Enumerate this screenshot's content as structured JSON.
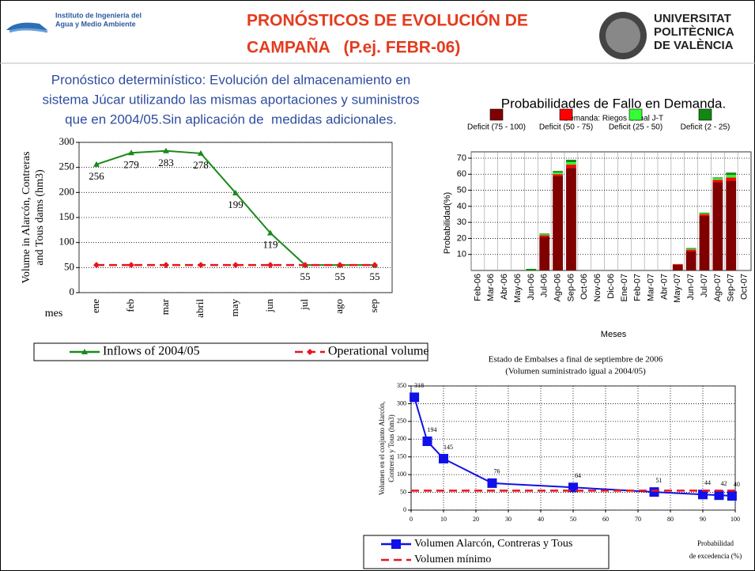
{
  "header": {
    "institute": [
      "Instituto de Ingeniería del",
      "Agua y Medio Ambiente"
    ],
    "title": [
      "PRONÓSTICOS DE EVOLUCIÓN DE",
      "CAMPAÑA   (P.ej. FEBR-06)"
    ],
    "university": [
      "UNIVERSITAT",
      "POLITÈCNICA",
      "DE VALÈNCIA"
    ],
    "description": [
      "Pronóstico determinístico: Evolución del almacenamiento en",
      "sistema Júcar utilizando las mismas aportaciones y suministros",
      "que en 2004/05.Sin aplicación de  medidas adicionales."
    ]
  },
  "chart_data": [
    {
      "type": "line",
      "ylabel": [
        "Volume in Alarcón, Contreras",
        "and Tous dams (hm3)"
      ],
      "xlabel": "mes",
      "categories": [
        "ene",
        "feb",
        "mar",
        "abril",
        "may",
        "jun",
        "jul",
        "ago",
        "sep"
      ],
      "series": [
        {
          "name": "Inflows of  2004/05",
          "color": "#1a8a1a",
          "marker": "triangle",
          "linestyle": "solid",
          "data_labels": true,
          "values": [
            256,
            279,
            283,
            278,
            199,
            119,
            55,
            55,
            55
          ]
        },
        {
          "name": "Operational volume",
          "color": "#e8141e",
          "marker": "diamond",
          "linestyle": "dashed",
          "data_labels": false,
          "values": [
            55,
            55,
            55,
            55,
            55,
            55,
            55,
            55,
            55
          ]
        }
      ],
      "ylim": [
        0,
        300
      ],
      "yticks": [
        0,
        50,
        100,
        150,
        200,
        250,
        300
      ],
      "grid": true
    },
    {
      "type": "bar",
      "stacked": true,
      "title": "Probabilidades de Fallo en Demanda.",
      "subtitle": "Demanda: Riegos Canal J-T",
      "ylabel": "Probabilidad(%)",
      "xlabel": "Meses",
      "categories": [
        "Feb-06",
        "Mar-06",
        "Abr-06",
        "May-06",
        "Jun-06",
        "Jul-06",
        "Ago-06",
        "Sep-06",
        "Oct-06",
        "Nov-06",
        "Dic-06",
        "Ene-07",
        "Feb-07",
        "Mar-07",
        "Abr-07",
        "May-07",
        "Jun-07",
        "Jul-07",
        "Ago-07",
        "Sep-07",
        "Oct-07"
      ],
      "series": [
        {
          "name": "Deficit (75 - 100)",
          "color": "#800000",
          "values": [
            0,
            0,
            0,
            0,
            0,
            21,
            59,
            64,
            0,
            0,
            0,
            0,
            0,
            0,
            0,
            3.5,
            12,
            34,
            55,
            56,
            0
          ]
        },
        {
          "name": "Deficit (50 - 75)",
          "color": "#ff0000",
          "values": [
            0,
            0,
            0,
            0,
            0,
            1,
            1,
            2,
            0,
            0,
            0,
            0,
            0,
            0,
            0,
            0.5,
            1,
            1,
            1.5,
            2,
            0
          ]
        },
        {
          "name": "Deficit (25 - 50)",
          "color": "#33ff33",
          "values": [
            0,
            0,
            0,
            0,
            0,
            0.5,
            1,
            1.5,
            0,
            0,
            0,
            0,
            0,
            0,
            0,
            0,
            0.5,
            0.5,
            1,
            1.5,
            0
          ]
        },
        {
          "name": "Deficit (2 - 25)",
          "color": "#118811",
          "values": [
            0,
            0,
            0,
            0,
            1,
            0.5,
            1,
            1.5,
            0,
            0,
            0,
            0,
            0,
            0,
            0,
            0,
            0.5,
            0.5,
            0.5,
            1.5,
            0
          ]
        }
      ],
      "ylim": [
        0,
        70
      ],
      "yticks": [
        10,
        20,
        30,
        40,
        50,
        60,
        70
      ],
      "grid": true
    },
    {
      "type": "line",
      "title": "Estado de Embalses a final de septiembre de 2006",
      "subtitle": "(Volumen suministrado igual a 2004/05)",
      "ylabel": [
        "Volumen en el conjunto Alarcón,",
        "Contreras y Tous (hm3)"
      ],
      "xlabel": [
        "Probabilidad",
        "de excedencia (%)"
      ],
      "series": [
        {
          "name": "Volumen Alarcón, Contreras y Tous",
          "color": "#1010e8",
          "marker": "square",
          "linestyle": "solid",
          "data_labels": true,
          "x": [
            1,
            5,
            10,
            25,
            50,
            75,
            90,
            95,
            99
          ],
          "values": [
            318,
            194,
            145,
            76,
            64,
            51,
            44,
            42,
            40
          ]
        },
        {
          "name": "Volumen mínimo",
          "color": "#e8141e",
          "marker": "none",
          "linestyle": "dashed",
          "data_labels": false,
          "x": [
            0,
            100
          ],
          "values": [
            55,
            55
          ]
        }
      ],
      "xlim": [
        0,
        100
      ],
      "xticks": [
        0,
        10,
        20,
        30,
        40,
        50,
        60,
        70,
        80,
        90,
        100
      ],
      "ylim": [
        0,
        350
      ],
      "yticks": [
        0,
        50,
        100,
        150,
        200,
        250,
        300,
        350
      ],
      "grid": true
    }
  ]
}
